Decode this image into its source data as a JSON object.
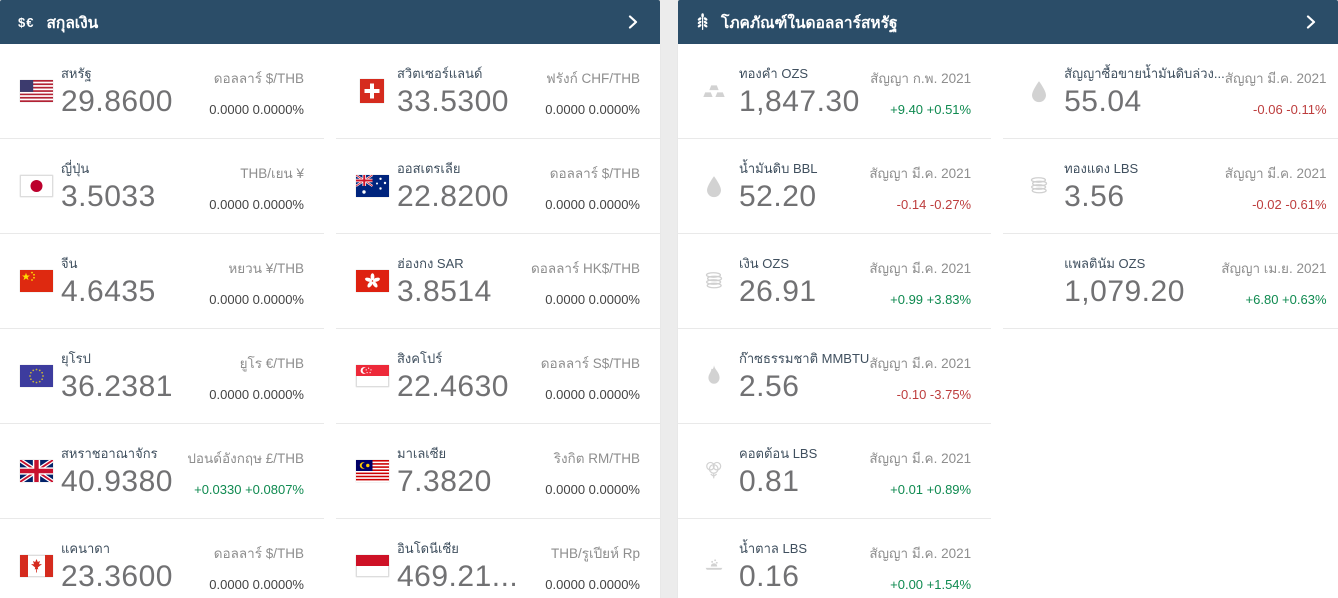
{
  "colors": {
    "header_bg": "#2b4d68",
    "positive": "#0f8a50",
    "negative": "#bd3d3d"
  },
  "currencies_panel": {
    "title": "สกุลเงิน",
    "icon_text": "$€",
    "items": [
      {
        "flag": "us",
        "name": "สหรัฐ",
        "value": "29.8600",
        "detail": "ดอลลาร์ $/THB",
        "change": "0.0000 0.0000%",
        "trend": "flat"
      },
      {
        "flag": "ch",
        "name": "สวิตเซอร์แลนด์",
        "value": "33.5300",
        "detail": "ฟรังก์ CHF/THB",
        "change": "0.0000 0.0000%",
        "trend": "flat"
      },
      {
        "flag": "jp",
        "name": "ญี่ปุ่น",
        "value": "3.5033",
        "detail": "THB/เยน ¥",
        "change": "0.0000 0.0000%",
        "trend": "flat"
      },
      {
        "flag": "au",
        "name": "ออสเตรเลีย",
        "value": "22.8200",
        "detail": "ดอลลาร์ $/THB",
        "change": "0.0000 0.0000%",
        "trend": "flat"
      },
      {
        "flag": "cn",
        "name": "จีน",
        "value": "4.6435",
        "detail": "หยวน ¥/THB",
        "change": "0.0000 0.0000%",
        "trend": "flat"
      },
      {
        "flag": "hk",
        "name": "ฮ่องกง SAR",
        "value": "3.8514",
        "detail": "ดอลลาร์ HK$/THB",
        "change": "0.0000 0.0000%",
        "trend": "flat"
      },
      {
        "flag": "eu",
        "name": "ยุโรป",
        "value": "36.2381",
        "detail": "ยูโร €/THB",
        "change": "0.0000 0.0000%",
        "trend": "flat"
      },
      {
        "flag": "sg",
        "name": "สิงคโปร์",
        "value": "22.4630",
        "detail": "ดอลลาร์ S$/THB",
        "change": "0.0000 0.0000%",
        "trend": "flat"
      },
      {
        "flag": "gb",
        "name": "สหราชอาณาจักร",
        "value": "40.9380",
        "detail": "ปอนด์อังกฤษ £/THB",
        "change": "+0.0330 +0.0807%",
        "trend": "up"
      },
      {
        "flag": "my",
        "name": "มาเลเซีย",
        "value": "7.3820",
        "detail": "ริงกิต RM/THB",
        "change": "0.0000 0.0000%",
        "trend": "flat"
      },
      {
        "flag": "ca",
        "name": "แคนาดา",
        "value": "23.3600",
        "detail": "ดอลลาร์ $/THB",
        "change": "0.0000 0.0000%",
        "trend": "flat"
      },
      {
        "flag": "id",
        "name": "อินโดนีเซีย",
        "value": "469.21...",
        "detail": "THB/รูเปียห์ Rp",
        "change": "0.0000 0.0000%",
        "trend": "flat"
      }
    ]
  },
  "commodities_panel": {
    "title": "โภคภัณฑ์ในดอลลาร์สหรัฐ",
    "items": [
      {
        "icon": "gold-bars-icon",
        "name": "ทองคำ OZS",
        "value": "1,847.30",
        "detail": "สัญญา ก.พ. 2021",
        "change": "+9.40 +0.51%",
        "trend": "up"
      },
      {
        "icon": "oil-droplet-icon",
        "name": "สัญญาซื้อขายน้ำมันดิบล่วง...",
        "value": "55.04",
        "detail": "สัญญา มี.ค. 2021",
        "change": "-0.06 -0.11%",
        "trend": "down"
      },
      {
        "icon": "oil-droplet-icon",
        "name": "น้ำมันดิบ BBL",
        "value": "52.20",
        "detail": "สัญญา มี.ค. 2021",
        "change": "-0.14 -0.27%",
        "trend": "down"
      },
      {
        "icon": "coin-stack-icon",
        "name": "ทองแดง LBS",
        "value": "3.56",
        "detail": "สัญญา มี.ค. 2021",
        "change": "-0.02 -0.61%",
        "trend": "down"
      },
      {
        "icon": "coin-stack-icon",
        "name": "เงิน OZS",
        "value": "26.91",
        "detail": "สัญญา มี.ค. 2021",
        "change": "+0.99 +3.83%",
        "trend": "up"
      },
      {
        "icon": "none",
        "name": "แพลตินัม OZS",
        "value": "1,079.20",
        "detail": "สัญญา เม.ย. 2021",
        "change": "+6.80 +0.63%",
        "trend": "up"
      },
      {
        "icon": "flame-icon",
        "name": "ก๊าซธรรมชาติ MMBTU",
        "value": "2.56",
        "detail": "สัญญา มี.ค. 2021",
        "change": "-0.10 -3.75%",
        "trend": "down"
      },
      {
        "icon": "cotton-icon",
        "name": "คอตต้อน LBS",
        "value": "0.81",
        "detail": "สัญญา มี.ค. 2021",
        "change": "+0.01 +0.89%",
        "trend": "up"
      },
      {
        "icon": "sugar-bowl-icon",
        "name": "น้ำตาล LBS",
        "value": "0.16",
        "detail": "สัญญา มี.ค. 2021",
        "change": "+0.00 +1.54%",
        "trend": "up"
      }
    ]
  }
}
